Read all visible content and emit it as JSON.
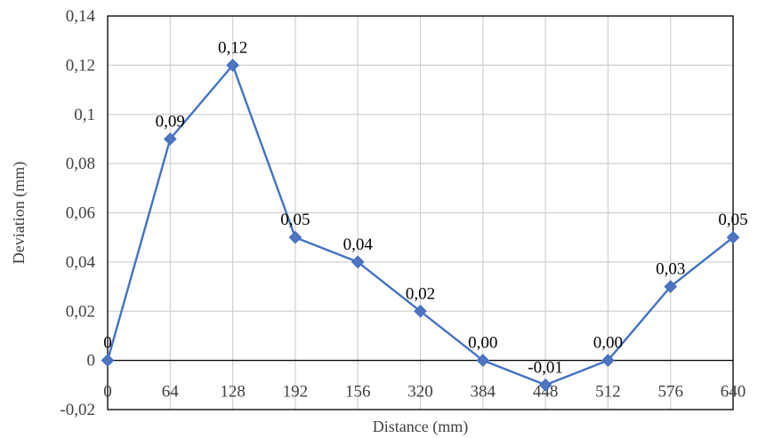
{
  "chart_data": {
    "type": "line",
    "title": "",
    "xlabel": "Distance (mm)",
    "ylabel": "Deviation (mm)",
    "categories": [
      "0",
      "64",
      "128",
      "192",
      "156",
      "320",
      "384",
      "448",
      "512",
      "576",
      "640"
    ],
    "series": [
      {
        "values": [
          0,
          0.09,
          0.12,
          0.05,
          0.04,
          0.02,
          0.0,
          -0.01,
          0.0,
          0.03,
          0.05
        ],
        "data_labels": [
          "0",
          "0,09",
          "0,12",
          "0,05",
          "0,04",
          "0,02",
          "0,00",
          "-0,01",
          "0,00",
          "0,03",
          "0,05"
        ],
        "color": "#4472c4",
        "marker": "diamond",
        "marker_color": "#4f73be"
      }
    ],
    "ylim": [
      -0.02,
      0.14
    ],
    "yticks": [
      -0.02,
      0,
      0.02,
      0.04,
      0.06,
      0.08,
      0.1,
      0.12,
      0.14
    ],
    "ytick_labels": [
      "-0,02",
      "0",
      "0,02",
      "0,04",
      "0,06",
      "0,08",
      "0,1",
      "0,12",
      "0,14"
    ],
    "grid": true,
    "legend": "none"
  }
}
